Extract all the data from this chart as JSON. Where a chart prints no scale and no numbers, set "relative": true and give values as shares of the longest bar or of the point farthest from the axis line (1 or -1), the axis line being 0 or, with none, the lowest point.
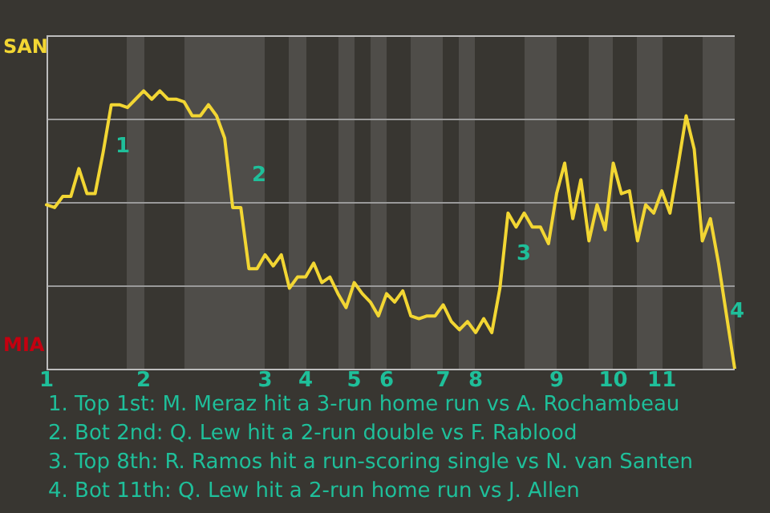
{
  "chart_data": {
    "type": "line",
    "grid": true,
    "relative": true,
    "categories": [
      "1",
      null,
      null,
      null,
      null,
      null,
      null,
      null,
      null,
      null,
      null,
      null,
      "2",
      null,
      null,
      null,
      null,
      null,
      null,
      null,
      null,
      null,
      null,
      null,
      null,
      null,
      null,
      "3",
      null,
      null,
      null,
      null,
      "4",
      null,
      null,
      null,
      null,
      null,
      "5",
      null,
      null,
      null,
      "6",
      null,
      null,
      null,
      null,
      null,
      null,
      "7",
      null,
      null,
      null,
      "8",
      null,
      null,
      null,
      null,
      null,
      null,
      null,
      null,
      null,
      "9",
      null,
      null,
      null,
      null,
      null,
      null,
      "10",
      null,
      null,
      null,
      null,
      null,
      "11",
      null,
      null,
      null,
      null,
      null,
      null,
      null,
      null,
      null
    ],
    "series": [
      {
        "color": "#f2d633",
        "values": [
          0.59,
          0.58,
          0.62,
          0.62,
          0.72,
          0.63,
          0.63,
          0.78,
          0.95,
          0.95,
          0.94,
          0.97,
          1,
          0.97,
          1,
          0.97,
          0.97,
          0.96,
          0.91,
          0.91,
          0.95,
          0.91,
          0.83,
          0.58,
          0.58,
          0.36,
          0.36,
          0.41,
          0.37,
          0.41,
          0.29,
          0.33,
          0.33,
          0.38,
          0.31,
          0.33,
          0.27,
          0.22,
          0.31,
          0.27,
          0.24,
          0.19,
          0.27,
          0.24,
          0.28,
          0.19,
          0.18,
          0.19,
          0.19,
          0.23,
          0.17,
          0.14,
          0.17,
          0.13,
          0.18,
          0.13,
          0.29,
          0.56,
          0.51,
          0.56,
          0.51,
          0.51,
          0.45,
          0.63,
          0.74,
          0.54,
          0.68,
          0.46,
          0.59,
          0.5,
          0.74,
          0.63,
          0.64,
          0.46,
          0.59,
          0.56,
          0.64,
          0.56,
          0.73,
          0.91,
          0.79,
          0.46,
          0.54,
          0.38,
          0.19,
          0
        ],
        "line_style": "solid"
      }
    ],
    "annotations": [
      "SAN",
      "MIA",
      "1",
      "2",
      "3",
      "4",
      "1. Top 1st: M. Meraz hit a 3-run home run vs A. Rochambeau",
      "2. Bot 2nd: Q. Lew hit a 2-run double vs F. Rablood",
      "3. Top 8th: R. Ramos hit a run-scoring single vs N. van Santen",
      "4. Bot 11th: Q. Lew hit a 2-run home run vs J. Allen"
    ]
  }
}
